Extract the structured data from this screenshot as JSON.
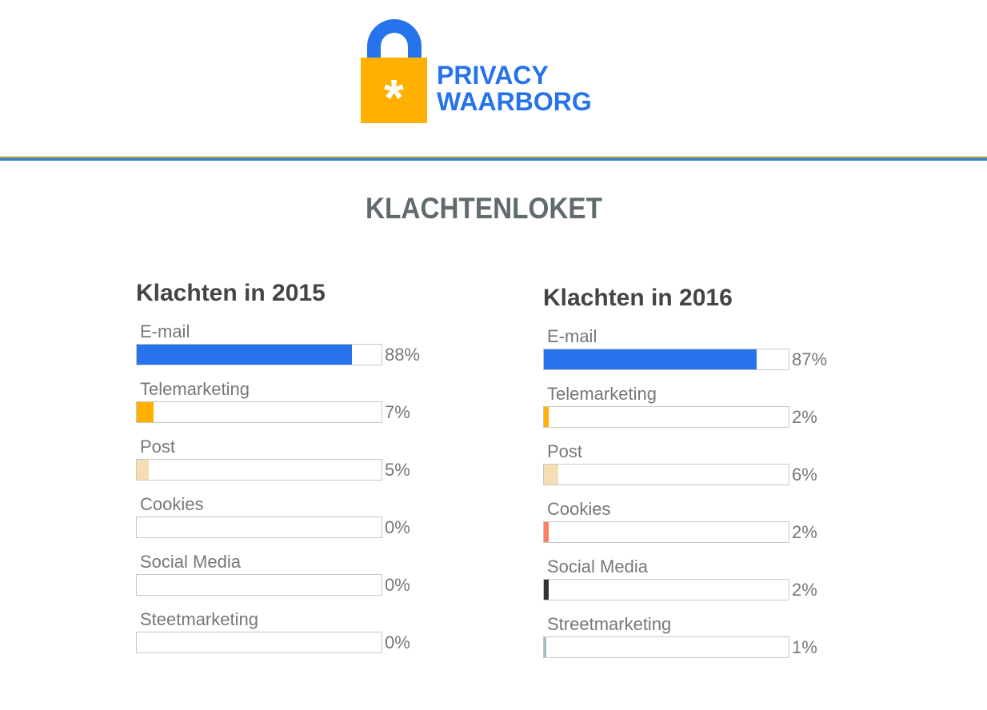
{
  "logo": {
    "line1": "PRIVACY",
    "line2": "WAARBORG",
    "symbol": "*"
  },
  "page_title": "KLACHTENLOKET",
  "chart_data": [
    {
      "type": "bar",
      "title": "Klachten in 2015",
      "categories": [
        "E-mail",
        "Telemarketing",
        "Post",
        "Cookies",
        "Social Media",
        "Steetmarketing"
      ],
      "values": [
        88,
        7,
        5,
        0,
        0,
        0
      ],
      "labels": [
        "88%",
        "7%",
        "5%",
        "0%",
        "0%",
        "0%"
      ],
      "ylim": [
        0,
        100
      ],
      "colors": [
        "#2673ec",
        "#ffb000",
        "#f5deb3",
        "#ff7f60",
        "#2f3436",
        "#9fbfc4"
      ]
    },
    {
      "type": "bar",
      "title": "Klachten in 2016",
      "categories": [
        "E-mail",
        "Telemarketing",
        "Post",
        "Cookies",
        "Social Media",
        "Streetmarketing"
      ],
      "values": [
        87,
        2,
        6,
        2,
        2,
        1
      ],
      "labels": [
        "87%",
        "2%",
        "6%",
        "2%",
        "2%",
        "1%"
      ],
      "ylim": [
        0,
        100
      ],
      "colors": [
        "#2673ec",
        "#ffb000",
        "#f5deb3",
        "#ff7f60",
        "#2f3436",
        "#9fbfc4"
      ]
    }
  ]
}
